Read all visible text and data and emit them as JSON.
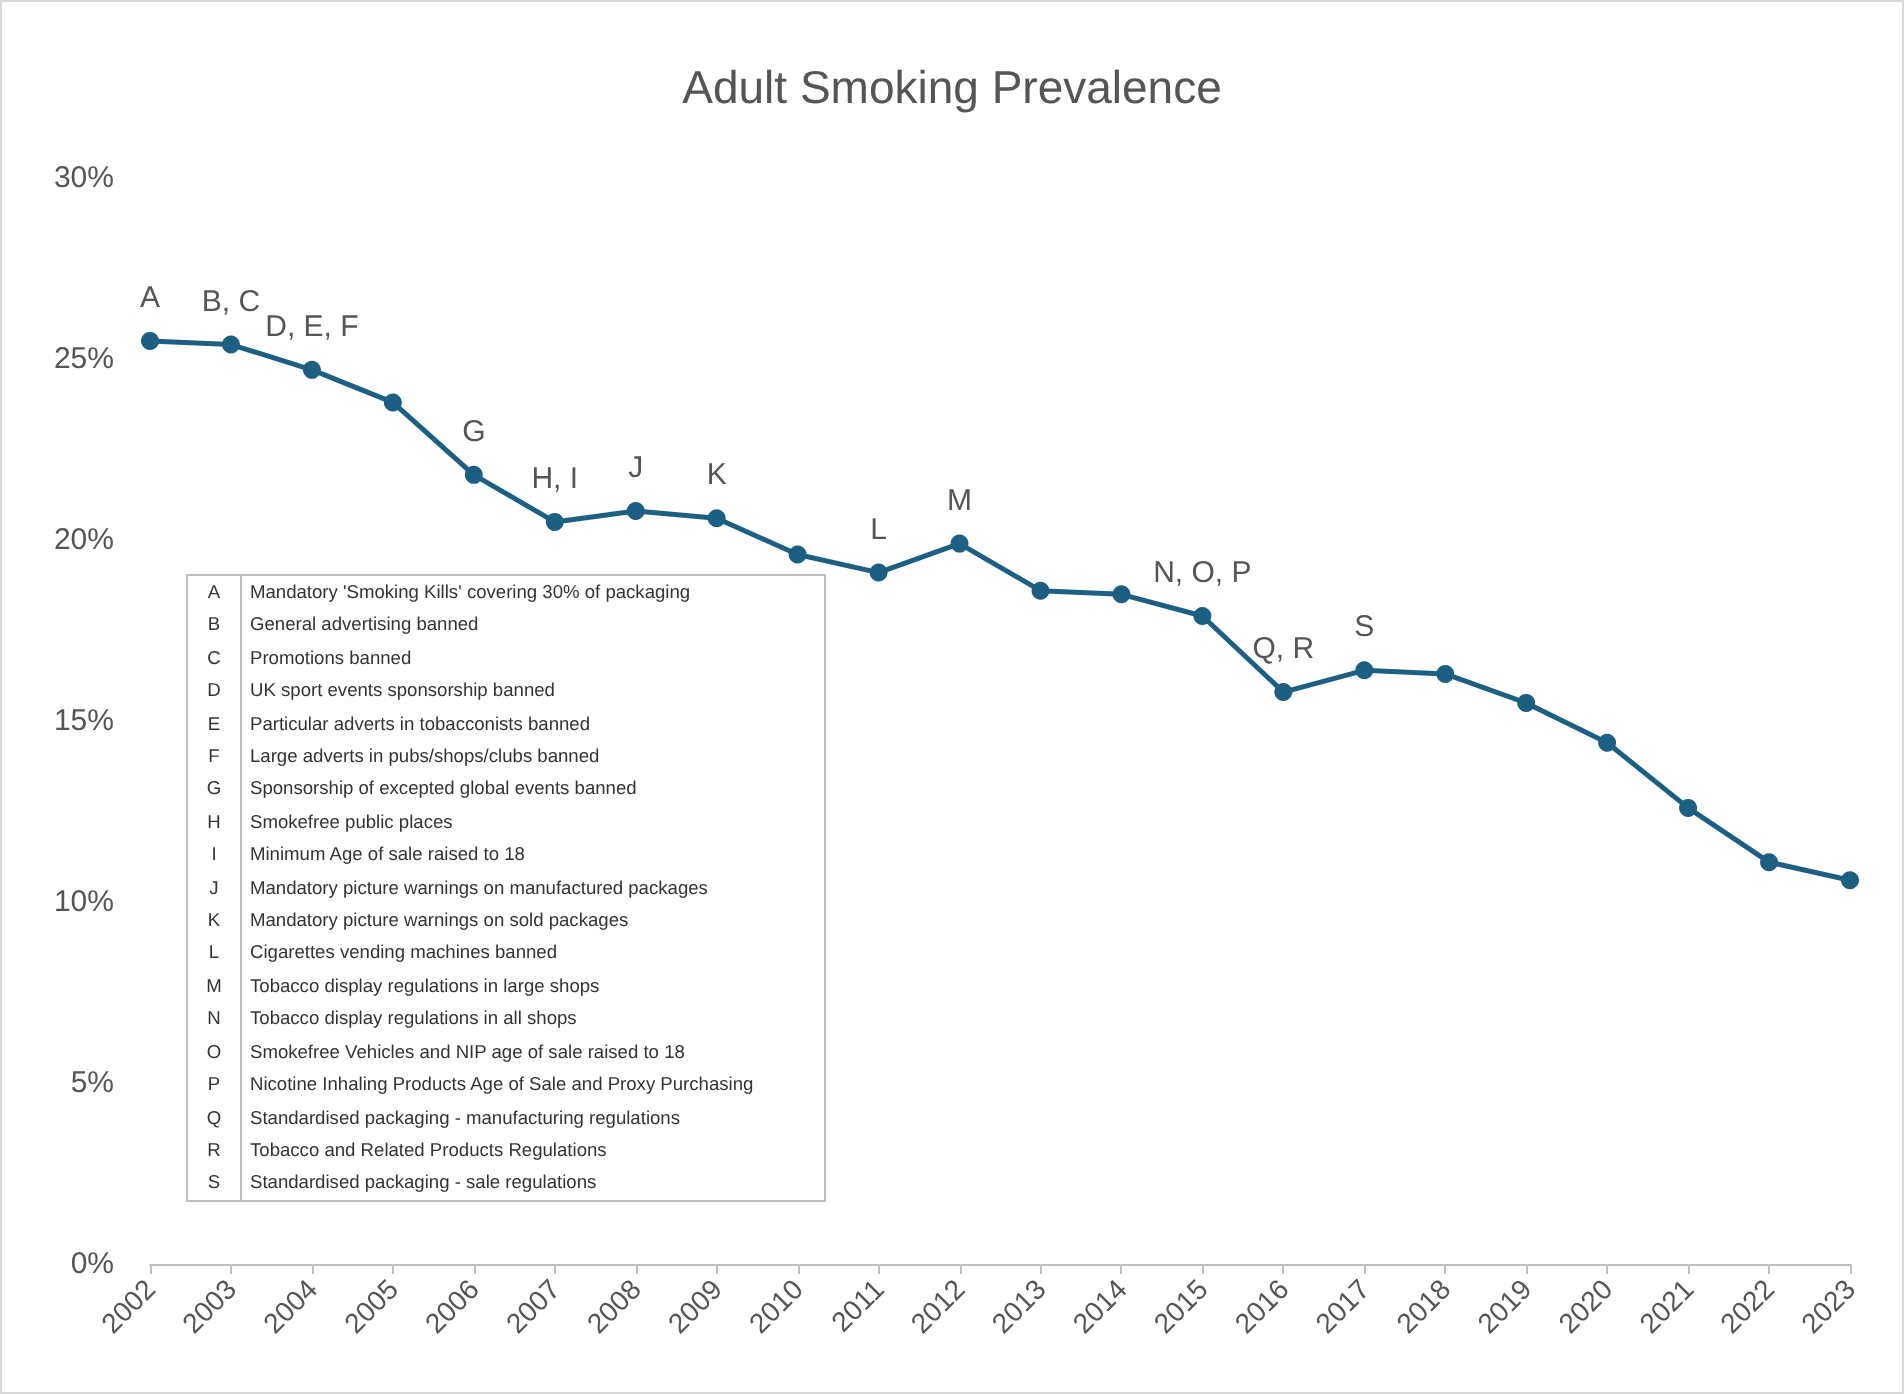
{
  "chart_data": {
    "type": "line",
    "title": "Adult Smoking Prevalence",
    "categories": [
      "2002",
      "2003",
      "2004",
      "2005",
      "2006",
      "2007",
      "2008",
      "2009",
      "2010",
      "2011",
      "2012",
      "2013",
      "2014",
      "2015",
      "2016",
      "2017",
      "2018",
      "2019",
      "2020",
      "2021",
      "2022",
      "2023"
    ],
    "series": [
      {
        "color": "#1c5f82",
        "values": [
          25.5,
          25.4,
          24.7,
          23.8,
          21.8,
          20.5,
          20.8,
          20.6,
          19.6,
          19.1,
          19.9,
          18.6,
          18.5,
          17.9,
          15.8,
          16.4,
          16.3,
          15.5,
          14.4,
          12.6,
          11.1,
          10.6
        ]
      }
    ],
    "ylim": [
      0,
      30
    ],
    "yticks": [
      {
        "value": 0,
        "label": "0%"
      },
      {
        "value": 5,
        "label": "5%"
      },
      {
        "value": 10,
        "label": "10%"
      },
      {
        "value": 15,
        "label": "15%"
      },
      {
        "value": 20,
        "label": "20%"
      },
      {
        "value": 25,
        "label": "25%"
      },
      {
        "value": 30,
        "label": "30%"
      }
    ],
    "marker": "circle",
    "line_style": "solid",
    "grid": false,
    "annotations": [
      {
        "text": "A",
        "x": "2002",
        "y": 25.5
      },
      {
        "text": "B, C",
        "x": "2003",
        "y": 25.4
      },
      {
        "text": "D, E, F",
        "x": "2004",
        "y": 24.7
      },
      {
        "text": "G",
        "x": "2006",
        "y": 21.8
      },
      {
        "text": "H, I",
        "x": "2007",
        "y": 20.5
      },
      {
        "text": "J",
        "x": "2008",
        "y": 20.8
      },
      {
        "text": "K",
        "x": "2009",
        "y": 20.6
      },
      {
        "text": "L",
        "x": "2011",
        "y": 19.1
      },
      {
        "text": "M",
        "x": "2012",
        "y": 19.9
      },
      {
        "text": "N, O, P",
        "x": "2015",
        "y": 17.9
      },
      {
        "text": "Q, R",
        "x": "2016",
        "y": 15.8
      },
      {
        "text": "S",
        "x": "2017",
        "y": 16.4
      },
      "A Mandatory 'Smoking Kills' covering 30% of packaging",
      "B General advertising banned",
      "C Promotions banned",
      "D UK sport events sponsorship banned",
      "E Particular adverts in tobacconists banned",
      "F Large adverts in pubs/shops/clubs banned",
      "G Sponsorship of excepted global events banned",
      "H Smokefree public places",
      "I Minimum Age of sale raised to 18",
      "J Mandatory picture warnings on manufactured packages",
      "K Mandatory picture warnings on sold packages",
      "L Cigarettes vending machines banned",
      "M Tobacco display regulations in large shops",
      "N Tobacco display regulations in all shops",
      "O Smokefree Vehicles and NIP age of sale raised to 18",
      "P Nicotine Inhaling Products Age of Sale and Proxy Purchasing",
      "Q Standardised packaging - manufacturing regulations",
      "R Tobacco and Related Products Regulations",
      "S Standardised packaging - sale regulations"
    ]
  }
}
